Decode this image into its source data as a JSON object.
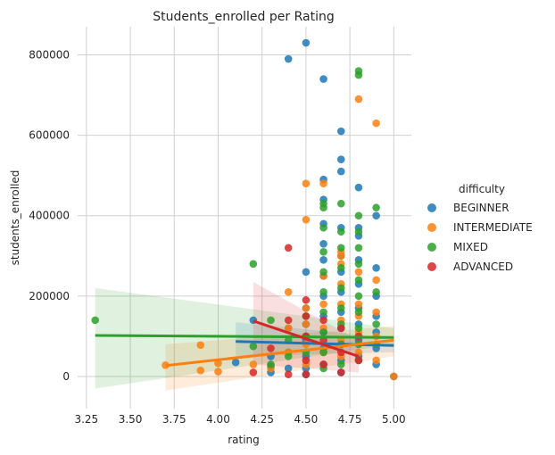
{
  "chart_data": {
    "type": "scatter",
    "title": "Students_enrolled per Rating",
    "xlabel": "rating",
    "ylabel": "students_enrolled",
    "xlim": [
      3.2,
      5.1
    ],
    "ylim": [
      -80000,
      870000
    ],
    "xticks": [
      3.25,
      3.5,
      3.75,
      4.0,
      4.25,
      4.5,
      4.75,
      5.0
    ],
    "xtick_labels": [
      "3.25",
      "3.50",
      "3.75",
      "4.00",
      "4.25",
      "4.50",
      "4.75",
      "5.00"
    ],
    "yticks": [
      0,
      200000,
      400000,
      600000,
      800000
    ],
    "ytick_labels": [
      "0",
      "200000",
      "400000",
      "600000",
      "800000"
    ],
    "grid": true,
    "legend": {
      "title": "difficulty",
      "placement": "right"
    },
    "series": [
      {
        "name": "BEGINNER",
        "color": "#1f77b4",
        "points": [
          [
            4.1,
            35000
          ],
          [
            4.2,
            140000
          ],
          [
            4.3,
            10000
          ],
          [
            4.3,
            25000
          ],
          [
            4.3,
            50000
          ],
          [
            4.4,
            790000
          ],
          [
            4.4,
            120000
          ],
          [
            4.4,
            60000
          ],
          [
            4.4,
            20000
          ],
          [
            4.5,
            830000
          ],
          [
            4.5,
            260000
          ],
          [
            4.5,
            170000
          ],
          [
            4.5,
            130000
          ],
          [
            4.5,
            90000
          ],
          [
            4.5,
            50000
          ],
          [
            4.5,
            20000
          ],
          [
            4.5,
            5000
          ],
          [
            4.6,
            740000
          ],
          [
            4.6,
            490000
          ],
          [
            4.6,
            440000
          ],
          [
            4.6,
            380000
          ],
          [
            4.6,
            330000
          ],
          [
            4.6,
            290000
          ],
          [
            4.6,
            250000
          ],
          [
            4.6,
            200000
          ],
          [
            4.6,
            150000
          ],
          [
            4.6,
            110000
          ],
          [
            4.6,
            70000
          ],
          [
            4.6,
            30000
          ],
          [
            4.7,
            610000
          ],
          [
            4.7,
            540000
          ],
          [
            4.7,
            510000
          ],
          [
            4.7,
            370000
          ],
          [
            4.7,
            300000
          ],
          [
            4.7,
            260000
          ],
          [
            4.7,
            210000
          ],
          [
            4.7,
            160000
          ],
          [
            4.7,
            120000
          ],
          [
            4.7,
            80000
          ],
          [
            4.7,
            40000
          ],
          [
            4.7,
            10000
          ],
          [
            4.8,
            470000
          ],
          [
            4.8,
            370000
          ],
          [
            4.8,
            350000
          ],
          [
            4.8,
            290000
          ],
          [
            4.8,
            230000
          ],
          [
            4.8,
            170000
          ],
          [
            4.8,
            130000
          ],
          [
            4.8,
            90000
          ],
          [
            4.8,
            50000
          ],
          [
            4.9,
            400000
          ],
          [
            4.9,
            270000
          ],
          [
            4.9,
            200000
          ],
          [
            4.9,
            150000
          ],
          [
            4.9,
            110000
          ],
          [
            4.9,
            70000
          ],
          [
            4.9,
            30000
          ],
          [
            5.0,
            0
          ]
        ],
        "fit": {
          "x": [
            4.1,
            5.0
          ],
          "y": [
            87000,
            77000
          ],
          "ci_low": [
            50000,
            60000
          ],
          "ci_high": [
            135000,
            95000
          ]
        }
      },
      {
        "name": "INTERMEDIATE",
        "color": "#ff7f0e",
        "points": [
          [
            3.7,
            28000
          ],
          [
            3.9,
            78000
          ],
          [
            3.9,
            15000
          ],
          [
            4.0,
            33000
          ],
          [
            4.0,
            12000
          ],
          [
            4.2,
            30000
          ],
          [
            4.3,
            20000
          ],
          [
            4.4,
            210000
          ],
          [
            4.4,
            120000
          ],
          [
            4.4,
            60000
          ],
          [
            4.5,
            480000
          ],
          [
            4.5,
            390000
          ],
          [
            4.5,
            170000
          ],
          [
            4.5,
            130000
          ],
          [
            4.5,
            80000
          ],
          [
            4.5,
            30000
          ],
          [
            4.6,
            480000
          ],
          [
            4.6,
            250000
          ],
          [
            4.6,
            180000
          ],
          [
            4.6,
            120000
          ],
          [
            4.6,
            60000
          ],
          [
            4.7,
            310000
          ],
          [
            4.7,
            300000
          ],
          [
            4.7,
            280000
          ],
          [
            4.7,
            230000
          ],
          [
            4.7,
            180000
          ],
          [
            4.7,
            140000
          ],
          [
            4.7,
            90000
          ],
          [
            4.7,
            50000
          ],
          [
            4.8,
            690000
          ],
          [
            4.8,
            260000
          ],
          [
            4.8,
            180000
          ],
          [
            4.8,
            150000
          ],
          [
            4.8,
            110000
          ],
          [
            4.8,
            60000
          ],
          [
            4.9,
            630000
          ],
          [
            4.9,
            240000
          ],
          [
            4.9,
            160000
          ],
          [
            4.9,
            100000
          ],
          [
            4.9,
            40000
          ],
          [
            5.0,
            0
          ]
        ],
        "fit": {
          "x": [
            3.7,
            5.0
          ],
          "y": [
            27000,
            90000
          ],
          "ci_low": [
            -35000,
            50000
          ],
          "ci_high": [
            80000,
            125000
          ]
        }
      },
      {
        "name": "MIXED",
        "color": "#2ca02c",
        "points": [
          [
            3.3,
            140000
          ],
          [
            4.2,
            280000
          ],
          [
            4.2,
            75000
          ],
          [
            4.3,
            140000
          ],
          [
            4.3,
            30000
          ],
          [
            4.4,
            90000
          ],
          [
            4.4,
            50000
          ],
          [
            4.5,
            150000
          ],
          [
            4.5,
            100000
          ],
          [
            4.5,
            60000
          ],
          [
            4.6,
            430000
          ],
          [
            4.6,
            420000
          ],
          [
            4.6,
            370000
          ],
          [
            4.6,
            310000
          ],
          [
            4.6,
            260000
          ],
          [
            4.6,
            210000
          ],
          [
            4.6,
            160000
          ],
          [
            4.6,
            110000
          ],
          [
            4.6,
            60000
          ],
          [
            4.6,
            20000
          ],
          [
            4.7,
            430000
          ],
          [
            4.7,
            360000
          ],
          [
            4.7,
            320000
          ],
          [
            4.7,
            270000
          ],
          [
            4.7,
            220000
          ],
          [
            4.7,
            170000
          ],
          [
            4.7,
            130000
          ],
          [
            4.7,
            80000
          ],
          [
            4.7,
            30000
          ],
          [
            4.8,
            760000
          ],
          [
            4.8,
            750000
          ],
          [
            4.8,
            400000
          ],
          [
            4.8,
            360000
          ],
          [
            4.8,
            320000
          ],
          [
            4.8,
            280000
          ],
          [
            4.8,
            240000
          ],
          [
            4.8,
            200000
          ],
          [
            4.8,
            160000
          ],
          [
            4.8,
            120000
          ],
          [
            4.8,
            80000
          ],
          [
            4.8,
            40000
          ],
          [
            4.9,
            420000
          ],
          [
            4.9,
            210000
          ],
          [
            4.9,
            130000
          ],
          [
            4.9,
            80000
          ]
        ],
        "fit": {
          "x": [
            3.3,
            5.0
          ],
          "y": [
            102000,
            97000
          ],
          "ci_low": [
            -30000,
            80000
          ],
          "ci_high": [
            220000,
            120000
          ]
        }
      },
      {
        "name": "ADVANCED",
        "color": "#d62728",
        "points": [
          [
            4.2,
            10000
          ],
          [
            4.3,
            70000
          ],
          [
            4.4,
            320000
          ],
          [
            4.4,
            140000
          ],
          [
            4.4,
            5000
          ],
          [
            4.5,
            190000
          ],
          [
            4.5,
            150000
          ],
          [
            4.5,
            100000
          ],
          [
            4.5,
            40000
          ],
          [
            4.5,
            5000
          ],
          [
            4.6,
            140000
          ],
          [
            4.6,
            90000
          ],
          [
            4.6,
            30000
          ],
          [
            4.7,
            120000
          ],
          [
            4.7,
            60000
          ],
          [
            4.7,
            10000
          ],
          [
            4.8,
            100000
          ],
          [
            4.8,
            40000
          ]
        ],
        "fit": {
          "x": [
            4.2,
            4.8
          ],
          "y": [
            138000,
            50000
          ],
          "ci_low": [
            30000,
            10000
          ],
          "ci_high": [
            235000,
            90000
          ]
        }
      }
    ]
  }
}
